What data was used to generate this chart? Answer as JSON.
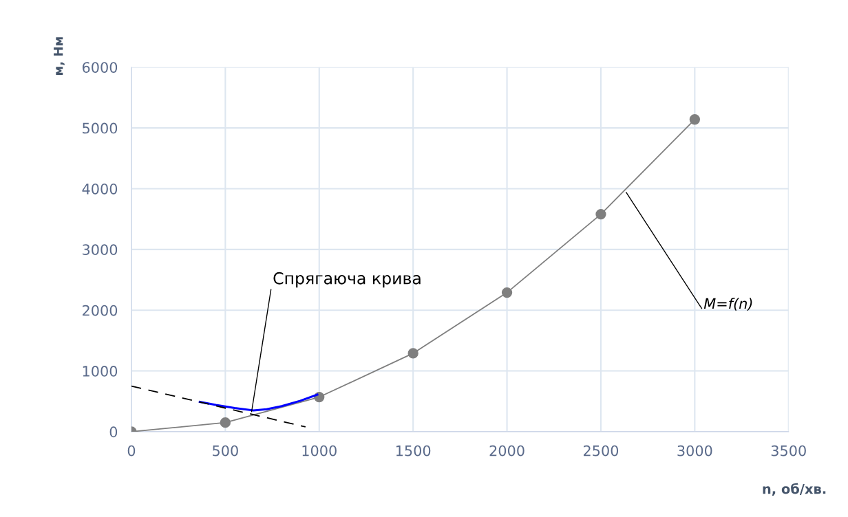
{
  "chart_data": {
    "type": "line",
    "xlabel": "n, об/хв.",
    "ylabel": "м, Нм",
    "x": [
      0,
      500,
      1000,
      1500,
      2000,
      2500,
      3000
    ],
    "series": [
      {
        "color": "#7f7f7f",
        "marker": "circle",
        "values": [
          0,
          150,
          570,
          1290,
          2290,
          3580,
          5140
        ]
      },
      {
        "color": "#0000ff",
        "marker": "none",
        "x": [
          364,
          450,
          550,
          650,
          720,
          800,
          900,
          990
        ],
        "values": [
          490,
          440,
          390,
          350,
          370,
          420,
          510,
          610
        ]
      },
      {
        "color": "#000000",
        "marker": "none",
        "line_style": "dashed",
        "x": [
          0,
          927
        ],
        "values": [
          750,
          80
        ]
      }
    ],
    "annotations": [
      {
        "text": "Спрягаюча крива",
        "x": 640,
        "y": 330
      },
      {
        "text": "M=f(n)",
        "x": 2635,
        "y": 3940
      }
    ],
    "xlim": [
      0,
      3500
    ],
    "xticks": [
      0,
      500,
      1000,
      1500,
      2000,
      2500,
      3000,
      3500
    ],
    "ylim": [
      0,
      6000
    ],
    "yticks": [
      0,
      1000,
      2000,
      3000,
      4000,
      5000,
      6000
    ],
    "grid": true,
    "legend": false
  }
}
